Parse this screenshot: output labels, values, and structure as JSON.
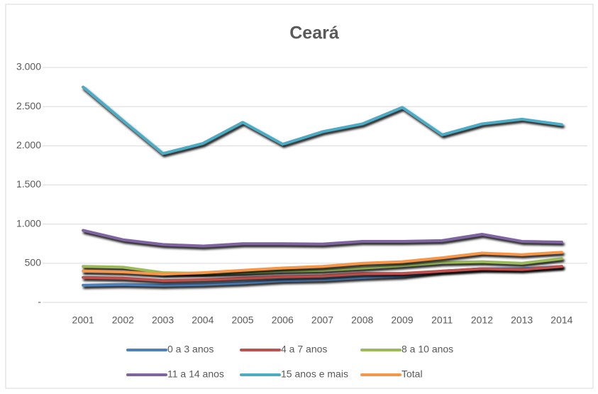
{
  "chart_data": {
    "type": "line",
    "title": "Ceará",
    "categories": [
      "2001",
      "2002",
      "2003",
      "2004",
      "2005",
      "2006",
      "2007",
      "2008",
      "2009",
      "2011",
      "2012",
      "2013",
      "2014"
    ],
    "series": [
      {
        "name": "0 a 3 anos",
        "color": "#4f81bd",
        "values": [
          220,
          230,
          220,
          230,
          250,
          280,
          290,
          320,
          340,
          400,
          430,
          430,
          460
        ]
      },
      {
        "name": "4 a 7 anos",
        "color": "#c0504d",
        "values": [
          320,
          310,
          280,
          290,
          310,
          330,
          340,
          370,
          370,
          400,
          430,
          420,
          460
        ]
      },
      {
        "name": "8 a 10 anos",
        "color": "#9bbb59",
        "values": [
          460,
          450,
          380,
          370,
          380,
          400,
          410,
          440,
          470,
          510,
          520,
          500,
          560
        ]
      },
      {
        "name": "11 a 14 anos",
        "color": "#8064a2",
        "values": [
          920,
          800,
          740,
          720,
          750,
          750,
          745,
          780,
          780,
          790,
          870,
          780,
          770
        ]
      },
      {
        "name": "15 anos e mais",
        "color": "#4bacc6",
        "values": [
          2750,
          2320,
          1900,
          2030,
          2300,
          2020,
          2180,
          2280,
          2490,
          2140,
          2280,
          2340,
          2270
        ]
      },
      {
        "name": "Total",
        "color": "#f79646",
        "values": [
          400,
          390,
          360,
          380,
          410,
          440,
          460,
          500,
          520,
          570,
          630,
          610,
          640
        ]
      }
    ],
    "ylim": [
      0,
      3000
    ],
    "yticks": [
      {
        "value": 0,
        "label": "-"
      },
      500,
      {
        "value": 1000,
        "label": "1.000"
      },
      {
        "value": 1500,
        "label": "1.500"
      },
      {
        "value": 2000,
        "label": "2.000"
      },
      {
        "value": 2500,
        "label": "2.500"
      },
      {
        "value": 3000,
        "label": "3.000"
      }
    ],
    "grid": true
  }
}
